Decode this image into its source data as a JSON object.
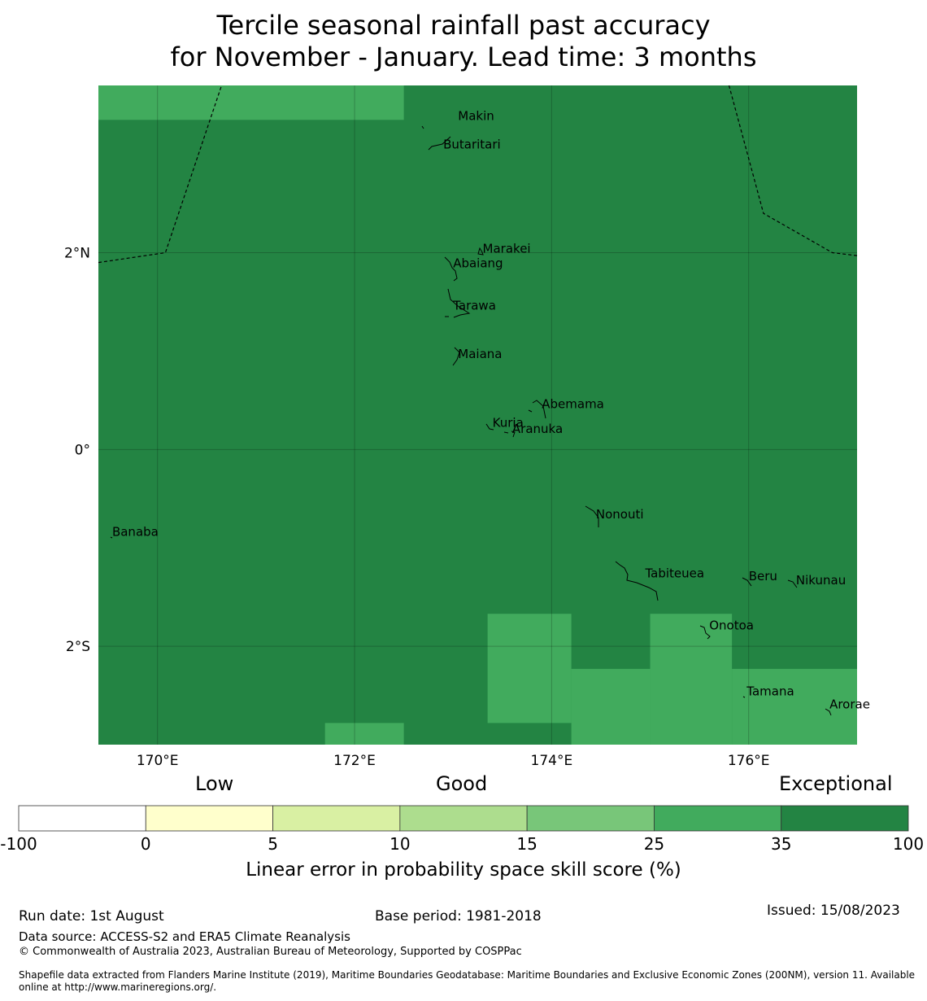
{
  "title": {
    "line1": "Tercile seasonal rainfall past accuracy",
    "line2": "for November - January. Lead time: 3 months"
  },
  "map": {
    "lon_range": [
      169.4,
      177.1
    ],
    "lat_range": [
      -3.0,
      3.7
    ],
    "lon_ticks": [
      {
        "value": 170,
        "label": "170°E"
      },
      {
        "value": 172,
        "label": "172°E"
      },
      {
        "value": 174,
        "label": "174°E"
      },
      {
        "value": 176,
        "label": "176°E"
      }
    ],
    "lat_ticks": [
      {
        "value": 2,
        "label": "2°N"
      },
      {
        "value": 0,
        "label": "0°"
      },
      {
        "value": -2,
        "label": "2°S"
      }
    ],
    "background_category": "35 to 100",
    "category_colors": {
      "25 to 35": "#41ab5d",
      "35 to 100": "#238443"
    },
    "cells_25_to_35": [
      {
        "lon": [
          169.4,
          172.5
        ],
        "lat": [
          3.35,
          3.7
        ]
      },
      {
        "lon": [
          171.7,
          172.5
        ],
        "lat": [
          -3.0,
          -2.78
        ]
      },
      {
        "lon": [
          173.35,
          174.2
        ],
        "lat": [
          -2.78,
          -1.67
        ]
      },
      {
        "lon": [
          174.2,
          175.0
        ],
        "lat": [
          -3.0,
          -2.23
        ]
      },
      {
        "lon": [
          175.0,
          175.83
        ],
        "lat": [
          -3.0,
          -1.67
        ]
      },
      {
        "lon": [
          175.83,
          177.1
        ],
        "lat": [
          -3.0,
          -2.23
        ]
      }
    ],
    "places": [
      {
        "name": "Makin",
        "lon": 173.05,
        "lat": 3.35
      },
      {
        "name": "Butaritari",
        "lon": 172.9,
        "lat": 3.06
      },
      {
        "name": "Marakei",
        "lon": 173.3,
        "lat": 2.0
      },
      {
        "name": "Abaiang",
        "lon": 173.0,
        "lat": 1.85
      },
      {
        "name": "Tarawa",
        "lon": 173.0,
        "lat": 1.42
      },
      {
        "name": "Maiana",
        "lon": 173.05,
        "lat": 0.93
      },
      {
        "name": "Abemama",
        "lon": 173.9,
        "lat": 0.42
      },
      {
        "name": "Kuria",
        "lon": 173.4,
        "lat": 0.23
      },
      {
        "name": "Aranuka",
        "lon": 173.6,
        "lat": 0.17
      },
      {
        "name": "Banaba",
        "lon": 169.54,
        "lat": -0.88
      },
      {
        "name": "Nonouti",
        "lon": 174.45,
        "lat": -0.7
      },
      {
        "name": "Tabiteuea",
        "lon": 174.95,
        "lat": -1.3
      },
      {
        "name": "Beru",
        "lon": 176.0,
        "lat": -1.33
      },
      {
        "name": "Nikunau",
        "lon": 176.48,
        "lat": -1.37
      },
      {
        "name": "Onotoa",
        "lon": 175.6,
        "lat": -1.83
      },
      {
        "name": "Tamana",
        "lon": 175.98,
        "lat": -2.5
      },
      {
        "name": "Arorae",
        "lon": 176.82,
        "lat": -2.63
      }
    ],
    "eez_boundaries": [
      [
        [
          169.4,
          1.9
        ],
        [
          170.08,
          2.0
        ],
        [
          170.65,
          3.7
        ]
      ],
      [
        [
          175.8,
          3.7
        ],
        [
          176.15,
          2.4
        ],
        [
          176.85,
          2.0
        ],
        [
          177.1,
          1.97
        ]
      ]
    ]
  },
  "colorbar": {
    "categories": [
      {
        "label": "Low",
        "position": "left"
      },
      {
        "label": "Good",
        "position": "center"
      },
      {
        "label": "Exceptional",
        "position": "right"
      }
    ],
    "ticks": [
      "-100",
      "0",
      "5",
      "10",
      "15",
      "25",
      "35",
      "100"
    ],
    "colors": [
      "#ffffff",
      "#ffffcc",
      "#d9f0a3",
      "#addd8e",
      "#78c679",
      "#41ab5d",
      "#238443"
    ],
    "label": "Linear error in probability space skill score (%)"
  },
  "footer": {
    "run_date": "Run date: 1st August",
    "base_period": "Base period: 1981-2018",
    "issued": "Issued: 15/08/2023",
    "data_source": "Data source: ACCESS-S2 and ERA5 Climate Reanalysis",
    "copyright": "© Commonwealth of Australia 2023, Australian Bureau of Meteorology, Supported by COSPPac",
    "shapefile": "Shapefile data extracted from Flanders Marine Institute (2019), Maritime Boundaries Geodatabase: Maritime Boundaries and Exclusive Economic Zones (200NM), version 11. Available online at http://www.marineregions.org/."
  }
}
